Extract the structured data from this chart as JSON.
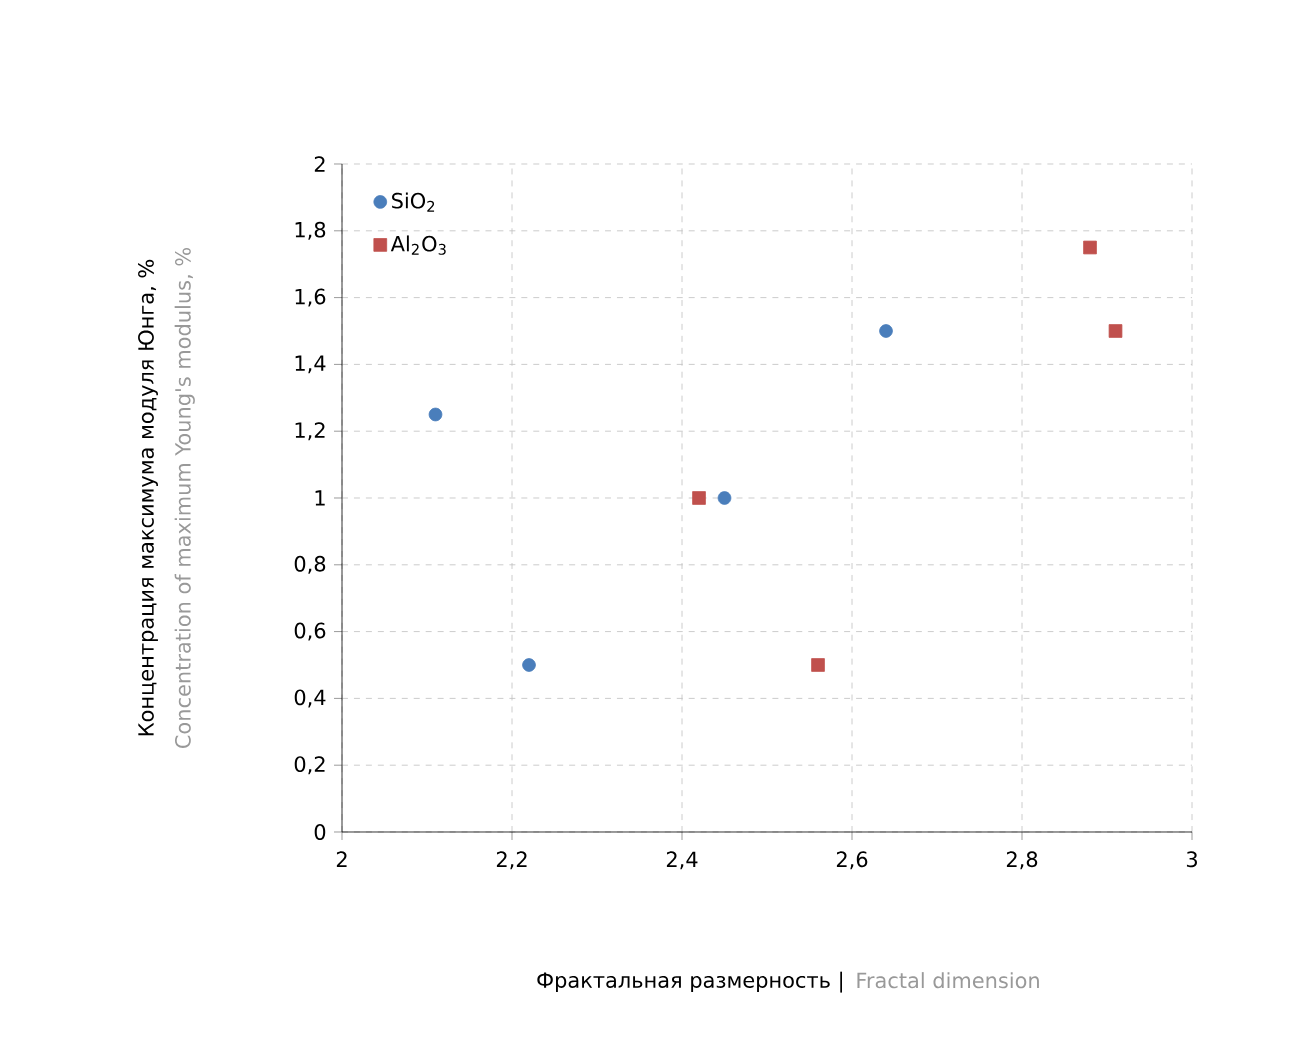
{
  "chart_data": {
    "type": "scatter",
    "xlabel": "Фрактальная размерность |",
    "ylabel": "Concentration of maximum Young's modulus, %",
    "annotations": [
      "Концентрация максимума модуля Юнга, %",
      "Fractal dimension"
    ],
    "series": [
      {
        "name": "SiO$_{2}$",
        "color": "#4a7ebb",
        "marker": "circle",
        "x": [
          2.11,
          2.22,
          2.45,
          2.64
        ],
        "values": [
          1.25,
          0.5,
          1.0,
          1.5
        ]
      },
      {
        "name": "Al$_{2}$O$_{3}$",
        "color": "#c0504d",
        "marker": "square",
        "x": [
          2.42,
          2.56,
          2.88,
          2.91
        ],
        "values": [
          1.0,
          0.5,
          1.75,
          1.5
        ]
      }
    ],
    "xlim": [
      2,
      3
    ],
    "ylim": [
      0,
      2
    ],
    "xticks": [
      2,
      {
        "value": 2.2,
        "label": "2,2"
      },
      {
        "value": 2.4,
        "label": "2,4"
      },
      {
        "value": 2.6,
        "label": "2,6"
      },
      {
        "value": 2.8,
        "label": "2,8"
      },
      3
    ],
    "yticks": [
      0,
      {
        "value": 0.2,
        "label": "0,2"
      },
      {
        "value": 0.4,
        "label": "0,4"
      },
      {
        "value": 0.6,
        "label": "0,6"
      },
      {
        "value": 0.8,
        "label": "0,8"
      },
      1,
      {
        "value": 1.2,
        "label": "1,2"
      },
      {
        "value": 1.4,
        "label": "1,4"
      },
      {
        "value": 1.6,
        "label": "1,6"
      },
      {
        "value": 1.8,
        "label": "1,8"
      },
      2
    ],
    "grid": true,
    "legend": "top left"
  }
}
